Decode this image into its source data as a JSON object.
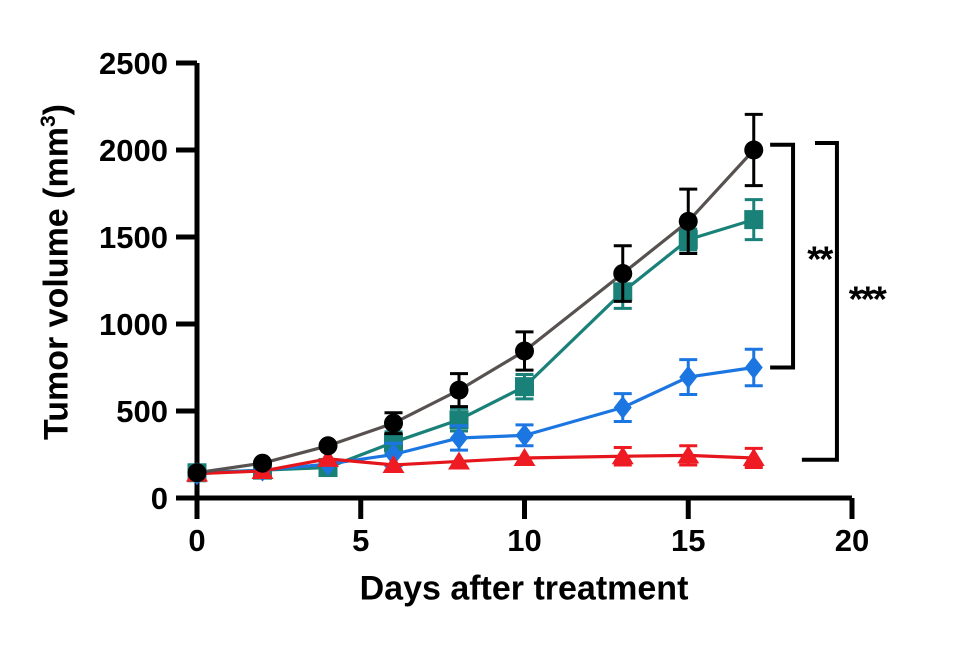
{
  "figure": {
    "background": "#ffffff",
    "axis_color": "#000000"
  },
  "chart_data": {
    "type": "line",
    "title": "",
    "xlabel": "Days after treatment",
    "ylabel": "Tumor volume (mm³)",
    "ylabel_parts": {
      "prefix": "Tumor volume (mm",
      "superscript": "3",
      "suffix": ")"
    },
    "xlim": [
      0,
      20
    ],
    "ylim": [
      0,
      2500
    ],
    "xticks": [
      0,
      5,
      10,
      15,
      20
    ],
    "yticks": [
      0,
      500,
      1000,
      1500,
      2000,
      2500
    ],
    "grid": false,
    "legend_position": "none",
    "x": [
      0,
      2,
      4,
      6,
      8,
      10,
      13,
      15,
      17
    ],
    "series_bottom_to_top": [
      {
        "name": "teal-squares",
        "marker": "square",
        "marker_color": "#1a8179",
        "line_color": "#1a8179",
        "values": [
          145,
          160,
          175,
          320,
          450,
          640,
          1185,
          1485,
          1600
        ],
        "errors": [
          0,
          0,
          0,
          60,
          65,
          70,
          95,
          60,
          115
        ]
      },
      {
        "name": "blue-diamonds",
        "marker": "diamond",
        "marker_color": "#1c76e2",
        "line_color": "#1c76e2",
        "values": [
          140,
          160,
          195,
          250,
          345,
          360,
          520,
          695,
          750
        ],
        "errors": [
          0,
          0,
          0,
          65,
          70,
          60,
          80,
          100,
          105
        ]
      },
      {
        "name": "red-triangles",
        "marker": "triangle",
        "marker_color": "#ee1b22",
        "line_color": "#e4161b",
        "values": [
          140,
          155,
          225,
          190,
          210,
          230,
          240,
          245,
          230
        ],
        "errors": [
          0,
          0,
          0,
          0,
          0,
          0,
          50,
          55,
          55
        ]
      },
      {
        "name": "black-circles",
        "marker": "circle",
        "marker_color": "#000000",
        "line_color": "#575150",
        "values": [
          145,
          200,
          300,
          430,
          620,
          845,
          1290,
          1590,
          2000
        ],
        "errors": [
          0,
          0,
          0,
          60,
          95,
          110,
          160,
          185,
          205
        ]
      }
    ],
    "significance_brackets": [
      {
        "label": "**",
        "line_day": 18.2,
        "top_stub_day": 17.5,
        "bottom_stub_day": 17.5,
        "top_value": 2030,
        "bottom_value": 750,
        "label_day": 19.0,
        "label_value": 1370
      },
      {
        "label": "***",
        "line_day": 19.54,
        "top_stub_day": 18.87,
        "bottom_stub_day": 18.47,
        "top_value": 2040,
        "bottom_value": 220,
        "label_day": 20.45,
        "label_value": 1140
      }
    ]
  }
}
